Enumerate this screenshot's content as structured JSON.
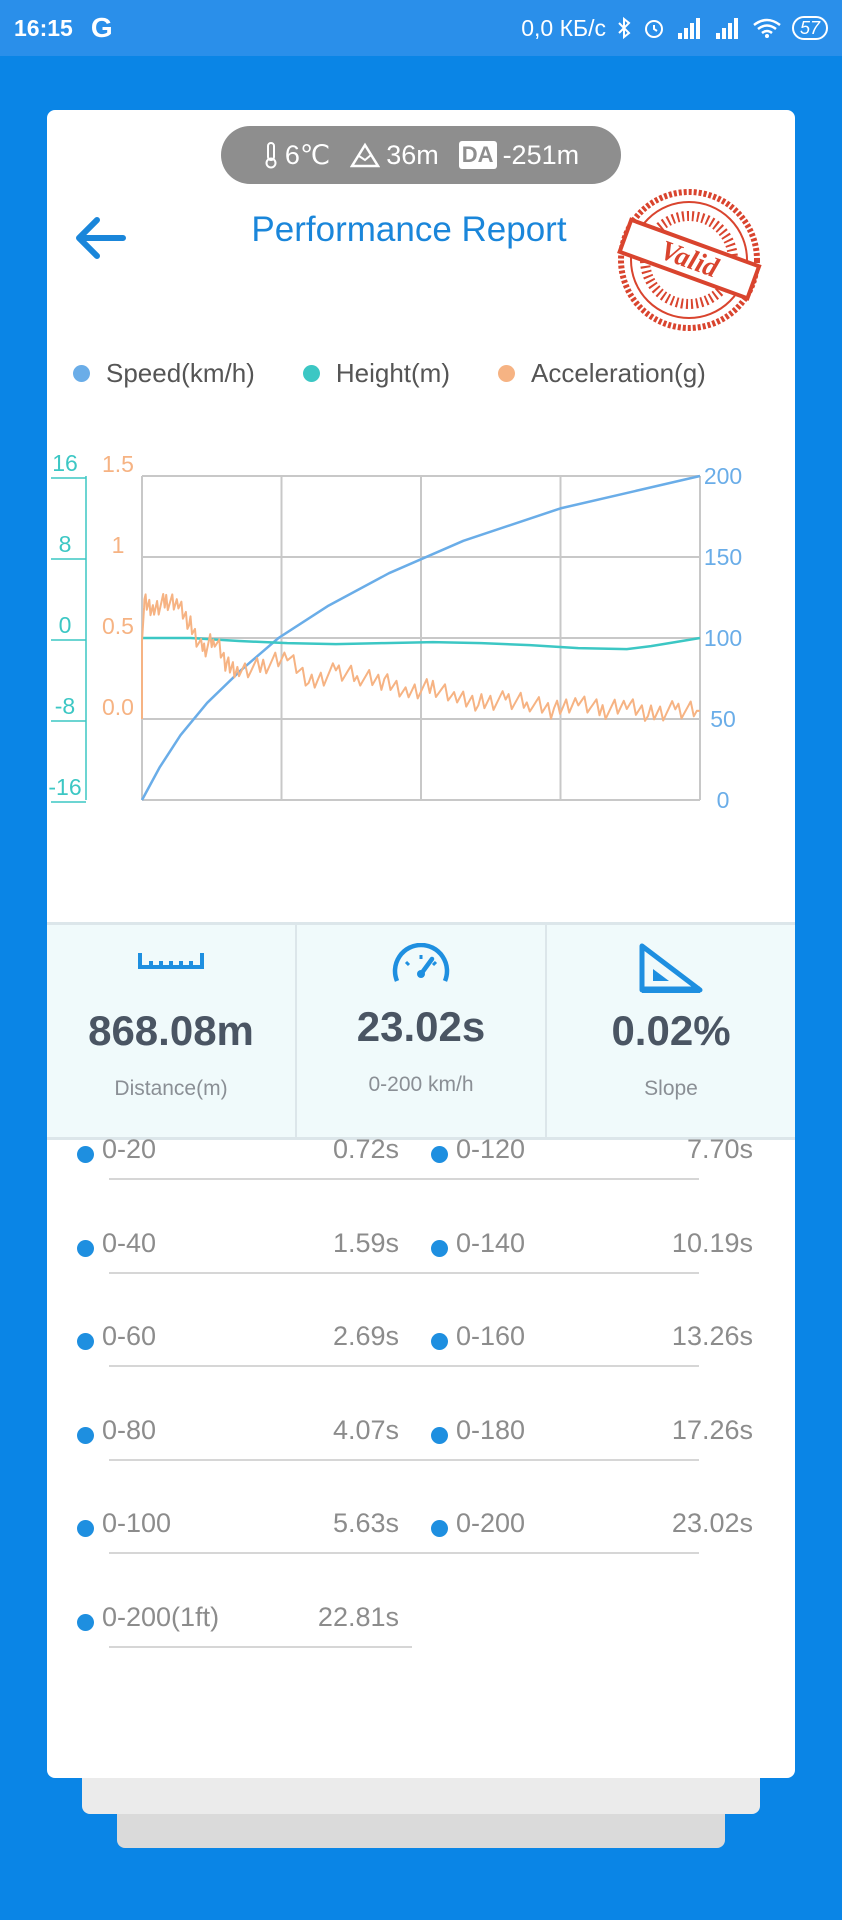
{
  "status_bar": {
    "time": "16:15",
    "google": "G",
    "network_speed": "0,0 КБ/с",
    "battery": "57"
  },
  "conditions": {
    "temperature": "6℃",
    "altitude": "36m",
    "da_badge": "DA",
    "density_altitude": "-251m"
  },
  "header": {
    "title": "Performance Report",
    "stamp_text": "Valid"
  },
  "colors": {
    "speed": "#6AADE8",
    "height": "#3CC7C4",
    "acceleration": "#F6B383",
    "accent": "#1A86DA",
    "background": "#0A85E6"
  },
  "chart_data": {
    "type": "line",
    "legend": [
      "Speed(km/h)",
      "Height(m)",
      "Acceleration(g)"
    ],
    "y_axes": {
      "height": {
        "ticks": [
          "16",
          "8",
          "0",
          "-8",
          "-16"
        ],
        "range": [
          -16,
          16
        ]
      },
      "acceleration": {
        "ticks": [
          "1.5",
          "1",
          "0.5",
          "0.0"
        ],
        "range": [
          -0.5,
          1.5
        ]
      },
      "speed": {
        "ticks": [
          "200",
          "150",
          "100",
          "50",
          "0"
        ],
        "range": [
          0,
          200
        ]
      }
    },
    "x_range": [
      0,
      23.02
    ],
    "grid": true,
    "series": [
      {
        "name": "Speed(km/h)",
        "axis": "speed",
        "x": [
          0,
          0.72,
          1.59,
          2.69,
          4.07,
          5.63,
          7.7,
          10.19,
          13.26,
          17.26,
          23.02
        ],
        "values": [
          0,
          20,
          40,
          60,
          80,
          100,
          120,
          140,
          160,
          180,
          200
        ]
      },
      {
        "name": "Height(m)",
        "axis": "height",
        "x": [
          0,
          2,
          4,
          6,
          8,
          10,
          12,
          14,
          16,
          18,
          20,
          21,
          22,
          23.02
        ],
        "values": [
          0,
          0,
          -0.3,
          -0.5,
          -0.6,
          -0.5,
          -0.4,
          -0.5,
          -0.7,
          -1,
          -1.1,
          -0.8,
          -0.4,
          0
        ]
      },
      {
        "name": "Acceleration(g)",
        "axis": "acceleration",
        "x": [
          0,
          0.1,
          0.5,
          1,
          1.5,
          2,
          2.5,
          3,
          3.5,
          4,
          5,
          6,
          7,
          8,
          9,
          10,
          11,
          12,
          13,
          14,
          15,
          16,
          17,
          18,
          19,
          20,
          21,
          22,
          23.02
        ],
        "values": [
          0.48,
          0.72,
          0.68,
          0.73,
          0.7,
          0.58,
          0.42,
          0.5,
          0.33,
          0.3,
          0.33,
          0.38,
          0.22,
          0.3,
          0.26,
          0.23,
          0.17,
          0.2,
          0.12,
          0.1,
          0.12,
          0.1,
          0.05,
          0.12,
          0.05,
          0.08,
          0.03,
          0.06,
          0.05
        ]
      }
    ]
  },
  "stats": [
    {
      "value": "868.08m",
      "label": "Distance(m)",
      "icon": "ruler-icon"
    },
    {
      "value": "23.02s",
      "label": "0-200 km/h",
      "icon": "speedometer-icon"
    },
    {
      "value": "0.02%",
      "label": "Slope",
      "icon": "slope-icon"
    }
  ],
  "splits": [
    {
      "label": "0-20",
      "time": "0.72s"
    },
    {
      "label": "0-120",
      "time": "7.70s"
    },
    {
      "label": "0-40",
      "time": "1.59s"
    },
    {
      "label": "0-140",
      "time": "10.19s"
    },
    {
      "label": "0-60",
      "time": "2.69s"
    },
    {
      "label": "0-160",
      "time": "13.26s"
    },
    {
      "label": "0-80",
      "time": "4.07s"
    },
    {
      "label": "0-180",
      "time": "17.26s"
    },
    {
      "label": "0-100",
      "time": "5.63s"
    },
    {
      "label": "0-200",
      "time": "23.02s"
    },
    {
      "label": "0-200(1ft)",
      "time": "22.81s"
    }
  ]
}
